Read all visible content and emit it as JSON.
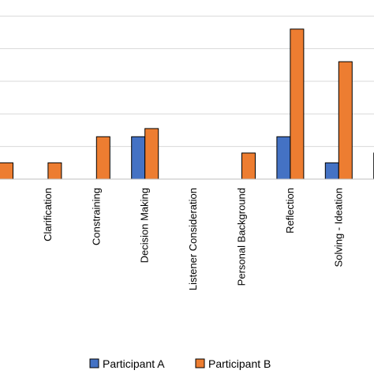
{
  "chart_data": {
    "type": "bar",
    "categories": [
      "",
      "Clarification",
      "Constraining",
      "Decision Making",
      "Listener Consideration",
      "Personal Background",
      "Reflection",
      "Solving - Ideation",
      ""
    ],
    "series": [
      {
        "name": "Participant A",
        "color": "#4472C4",
        "values": [
          0,
          0,
          0,
          2.6,
          0,
          0,
          2.6,
          1,
          1.6
        ]
      },
      {
        "name": "Participant B",
        "color": "#ED7D31",
        "values": [
          1,
          1,
          2.6,
          3.1,
          0,
          1.6,
          9.2,
          7.2,
          0
        ]
      }
    ],
    "grid": true,
    "legend": "bottom",
    "ylim": [
      0,
      10.5
    ]
  }
}
